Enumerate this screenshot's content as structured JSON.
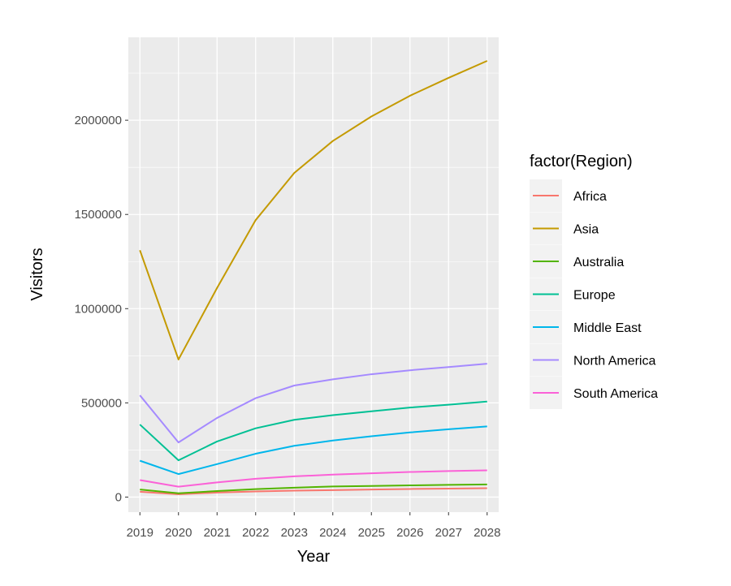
{
  "chart_data": {
    "type": "line",
    "title": "",
    "xlabel": "Year",
    "ylabel": "Visitors",
    "x": [
      2019,
      2020,
      2021,
      2022,
      2023,
      2024,
      2025,
      2026,
      2027,
      2028
    ],
    "x_tick_labels": [
      "2019",
      "2020",
      "2021",
      "2022",
      "2023",
      "2024",
      "2025",
      "2026",
      "2027",
      "2028"
    ],
    "y_ticks": [
      0,
      500000,
      1000000,
      1500000,
      2000000
    ],
    "y_tick_labels": [
      "0",
      "500000",
      "1000000",
      "1500000",
      "2000000"
    ],
    "xlim": [
      2018.7,
      2028.3
    ],
    "ylim": [
      -80000,
      2440000
    ],
    "grid": true,
    "legend_title": "factor(Region)",
    "legend_position": "right",
    "series": [
      {
        "name": "Africa",
        "color": "#F8766D",
        "values": [
          28000,
          15000,
          24000,
          30000,
          34000,
          37000,
          40000,
          43000,
          45000,
          47000
        ]
      },
      {
        "name": "Asia",
        "color": "#C49A00",
        "values": [
          1310000,
          730000,
          1110000,
          1470000,
          1720000,
          1890000,
          2020000,
          2130000,
          2225000,
          2315000
        ]
      },
      {
        "name": "Australia",
        "color": "#53B400",
        "values": [
          40000,
          20000,
          32000,
          42000,
          50000,
          56000,
          59000,
          62000,
          65000,
          67000
        ]
      },
      {
        "name": "Europe",
        "color": "#00C094",
        "values": [
          385000,
          195000,
          295000,
          365000,
          410000,
          435000,
          455000,
          475000,
          490000,
          507000
        ]
      },
      {
        "name": "Middle East",
        "color": "#00B6EB",
        "values": [
          193000,
          122000,
          175000,
          230000,
          272000,
          300000,
          323000,
          343000,
          360000,
          375000
        ]
      },
      {
        "name": "North America",
        "color": "#A58AFF",
        "values": [
          540000,
          290000,
          420000,
          525000,
          592000,
          625000,
          652000,
          673000,
          690000,
          708000
        ]
      },
      {
        "name": "South America",
        "color": "#FB61D7",
        "values": [
          90000,
          55000,
          78000,
          97000,
          110000,
          119000,
          126000,
          133000,
          138000,
          142000
        ]
      }
    ]
  }
}
